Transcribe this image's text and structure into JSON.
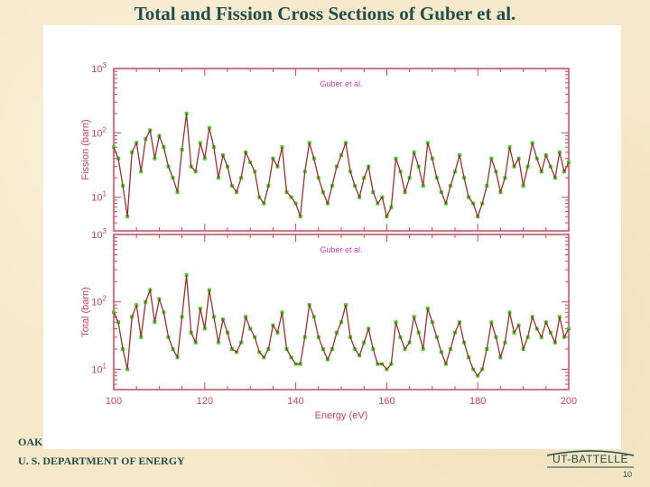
{
  "slide": {
    "title": "Total and Fission Cross Sections of Guber et al.",
    "footer_org_partial": "OAK",
    "footer_doe": "U. S. DEPARTMENT OF ENERGY",
    "logo_text": "UT-BATTELLE",
    "page_number": "10"
  },
  "colors": {
    "title": "#1f4e50",
    "axis": "#e0405a",
    "legend": "#d040c8",
    "data_line": "#a0302a",
    "data_points": "#33dd22"
  },
  "chart_data": [
    {
      "type": "line",
      "panel": "top",
      "legend": "Guber et al.",
      "ylabel": "Fission (barn)",
      "xlabel": "",
      "xlim": [
        100,
        200
      ],
      "ylim": [
        3,
        1000
      ],
      "yscale": "log",
      "y_ticks": [
        "10^1",
        "10^2",
        "10^3"
      ],
      "x_ticks": [],
      "grid": false,
      "series": [
        {
          "name": "Guber et al.",
          "x": [
            100,
            101,
            102,
            103,
            104,
            105,
            106,
            107,
            108,
            109,
            110,
            111,
            112,
            113,
            114,
            115,
            116,
            117,
            118,
            119,
            120,
            121,
            122,
            123,
            124,
            125,
            126,
            127,
            128,
            129,
            130,
            131,
            132,
            133,
            134,
            135,
            136,
            137,
            138,
            139,
            140,
            141,
            142,
            143,
            144,
            145,
            146,
            147,
            148,
            149,
            150,
            151,
            152,
            153,
            154,
            155,
            156,
            157,
            158,
            159,
            160,
            161,
            162,
            163,
            164,
            165,
            166,
            167,
            168,
            169,
            170,
            171,
            172,
            173,
            174,
            175,
            176,
            177,
            178,
            179,
            180,
            181,
            182,
            183,
            184,
            185,
            186,
            187,
            188,
            189,
            190,
            191,
            192,
            193,
            194,
            195,
            196,
            197,
            198,
            199,
            200
          ],
          "y": [
            60,
            40,
            15,
            5,
            50,
            70,
            25,
            80,
            110,
            40,
            90,
            60,
            30,
            20,
            12,
            55,
            200,
            30,
            25,
            70,
            40,
            120,
            60,
            20,
            45,
            30,
            15,
            12,
            20,
            50,
            35,
            25,
            10,
            8,
            15,
            40,
            30,
            60,
            12,
            10,
            8,
            5,
            25,
            70,
            40,
            20,
            12,
            8,
            15,
            30,
            45,
            70,
            25,
            15,
            10,
            20,
            30,
            12,
            8,
            10,
            5,
            7,
            40,
            25,
            12,
            20,
            50,
            30,
            15,
            70,
            40,
            20,
            12,
            8,
            15,
            25,
            45,
            20,
            10,
            8,
            5,
            8,
            15,
            40,
            25,
            12,
            20,
            60,
            30,
            40,
            15,
            30,
            70,
            40,
            25,
            45,
            30,
            20,
            50,
            25,
            35
          ]
        }
      ]
    },
    {
      "type": "line",
      "panel": "bottom",
      "legend": "Guber et al.",
      "ylabel": "Total (barn)",
      "xlabel": "Energy (eV)",
      "xlim": [
        100,
        200
      ],
      "ylim": [
        5,
        1000
      ],
      "yscale": "log",
      "y_ticks": [
        "10^1",
        "10^2",
        "10^3"
      ],
      "x_ticks": [
        100,
        120,
        140,
        160,
        180,
        200
      ],
      "grid": false,
      "series": [
        {
          "name": "Guber et al.",
          "x": [
            100,
            101,
            102,
            103,
            104,
            105,
            106,
            107,
            108,
            109,
            110,
            111,
            112,
            113,
            114,
            115,
            116,
            117,
            118,
            119,
            120,
            121,
            122,
            123,
            124,
            125,
            126,
            127,
            128,
            129,
            130,
            131,
            132,
            133,
            134,
            135,
            136,
            137,
            138,
            139,
            140,
            141,
            142,
            143,
            144,
            145,
            146,
            147,
            148,
            149,
            150,
            151,
            152,
            153,
            154,
            155,
            156,
            157,
            158,
            159,
            160,
            161,
            162,
            163,
            164,
            165,
            166,
            167,
            168,
            169,
            170,
            171,
            172,
            173,
            174,
            175,
            176,
            177,
            178,
            179,
            180,
            181,
            182,
            183,
            184,
            185,
            186,
            187,
            188,
            189,
            190,
            191,
            192,
            193,
            194,
            195,
            196,
            197,
            198,
            199,
            200
          ],
          "y": [
            70,
            50,
            20,
            10,
            60,
            90,
            30,
            100,
            150,
            50,
            110,
            70,
            30,
            20,
            15,
            60,
            250,
            35,
            25,
            80,
            40,
            150,
            60,
            25,
            55,
            35,
            20,
            18,
            25,
            60,
            40,
            30,
            18,
            15,
            20,
            45,
            35,
            70,
            20,
            15,
            12,
            12,
            30,
            90,
            60,
            30,
            20,
            14,
            20,
            35,
            50,
            90,
            30,
            20,
            16,
            25,
            40,
            20,
            12,
            12,
            10,
            12,
            50,
            30,
            20,
            25,
            60,
            35,
            20,
            80,
            50,
            30,
            18,
            12,
            20,
            35,
            50,
            25,
            15,
            10,
            8,
            10,
            20,
            50,
            30,
            15,
            25,
            70,
            35,
            45,
            20,
            30,
            60,
            40,
            30,
            50,
            35,
            25,
            60,
            30,
            40
          ]
        }
      ]
    }
  ]
}
